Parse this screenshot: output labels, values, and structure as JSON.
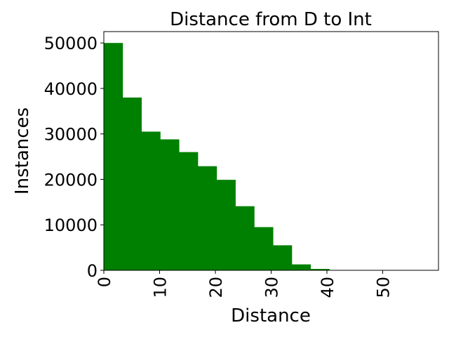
{
  "chart_data": {
    "type": "bar",
    "title": "Distance from D to Int",
    "xlabel": "Distance",
    "ylabel": "Instances",
    "bin_width": 3.37,
    "x_start": 0,
    "bins": [
      {
        "x0": 0.0,
        "x1": 3.37,
        "value": 50000
      },
      {
        "x0": 3.37,
        "x1": 6.74,
        "value": 38000
      },
      {
        "x0": 6.74,
        "x1": 10.11,
        "value": 30500
      },
      {
        "x0": 10.11,
        "x1": 13.48,
        "value": 28800
      },
      {
        "x0": 13.48,
        "x1": 16.85,
        "value": 26000
      },
      {
        "x0": 16.85,
        "x1": 20.22,
        "value": 22900
      },
      {
        "x0": 20.22,
        "x1": 23.59,
        "value": 19900
      },
      {
        "x0": 23.59,
        "x1": 26.96,
        "value": 14100
      },
      {
        "x0": 26.96,
        "x1": 30.33,
        "value": 9500
      },
      {
        "x0": 30.33,
        "x1": 33.7,
        "value": 5500
      },
      {
        "x0": 33.7,
        "x1": 37.07,
        "value": 1300
      },
      {
        "x0": 37.07,
        "x1": 40.44,
        "value": 300
      },
      {
        "x0": 40.44,
        "x1": 43.81,
        "value": 60
      },
      {
        "x0": 43.81,
        "x1": 47.18,
        "value": 15
      },
      {
        "x0": 47.18,
        "x1": 50.55,
        "value": 5
      },
      {
        "x0": 50.55,
        "x1": 53.92,
        "value": 2
      },
      {
        "x0": 53.92,
        "x1": 57.29,
        "value": 1
      }
    ],
    "xlim": [
      0,
      60
    ],
    "ylim": [
      0,
      52500
    ],
    "xticks": [
      0,
      10,
      20,
      30,
      40,
      50
    ],
    "xtick_labels": [
      "0",
      "10",
      "20",
      "30",
      "40",
      "50"
    ],
    "yticks": [
      0,
      10000,
      20000,
      30000,
      40000,
      50000
    ],
    "ytick_labels": [
      "0",
      "10000",
      "20000",
      "30000",
      "40000",
      "50000"
    ],
    "bar_color": "#008000",
    "grid": false,
    "xtick_rotation": "vertical"
  }
}
